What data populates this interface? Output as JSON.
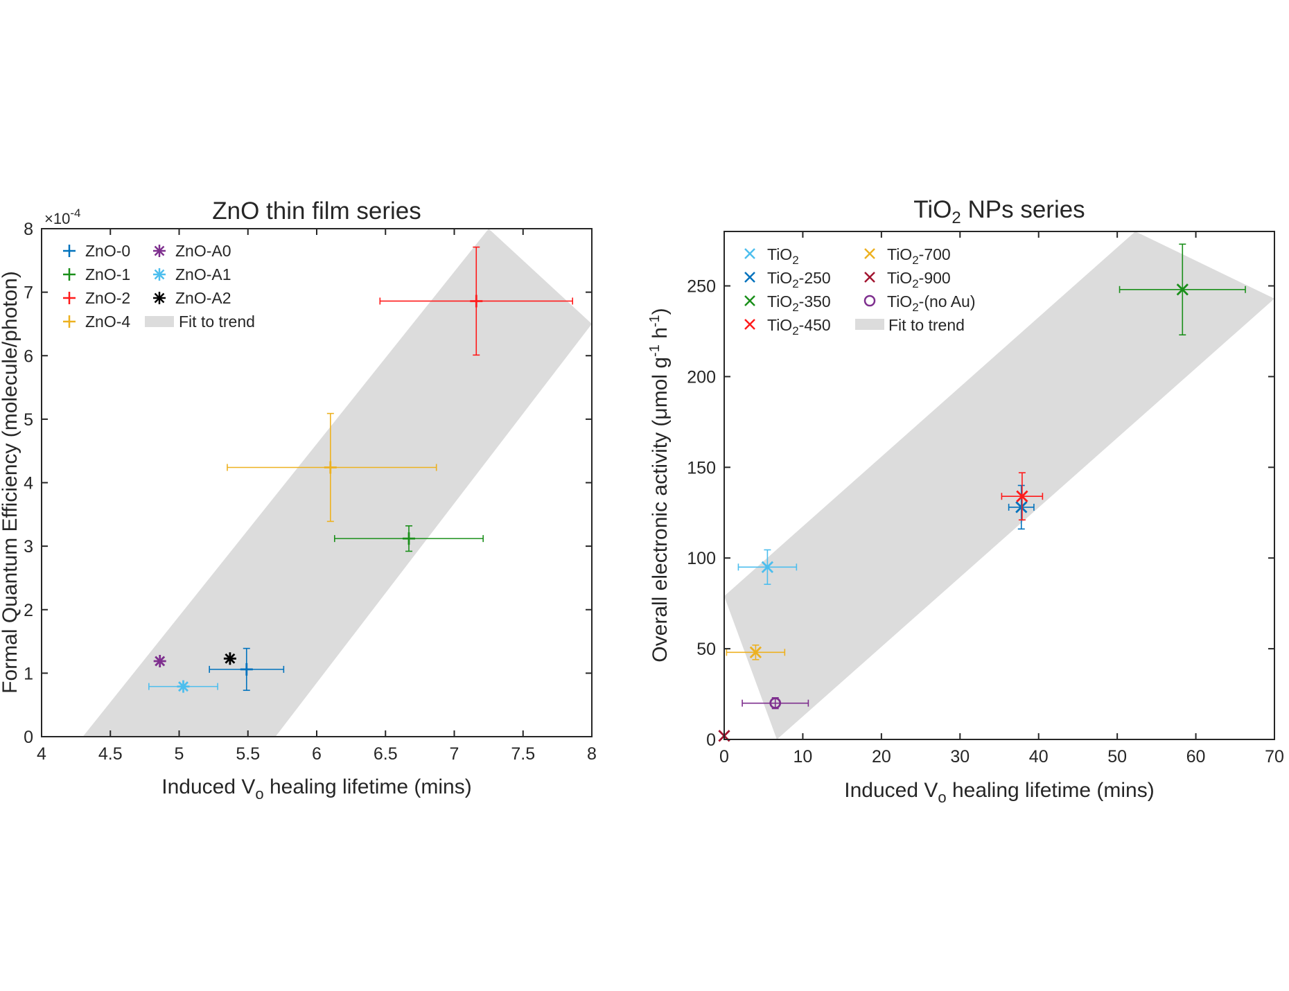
{
  "chart_data": [
    {
      "type": "scatter",
      "title": "ZnO thin film series",
      "xlabel": "Induced V_o healing lifetime (mins)",
      "ylabel": "Formal Quantum Efficiency (molecule/photon)",
      "y_exponent_label": "×10^-4",
      "xlim": [
        4,
        8
      ],
      "ylim": [
        0,
        8
      ],
      "xticks": [
        4,
        4.5,
        5,
        5.5,
        6,
        6.5,
        7,
        7.5,
        8
      ],
      "yticks": [
        0,
        1,
        2,
        3,
        4,
        5,
        6,
        7,
        8
      ],
      "xtick_labels": [
        "4",
        "4.5",
        "5",
        "5.5",
        "6",
        "6.5",
        "7",
        "7.5",
        "8"
      ],
      "ytick_labels": [
        "0",
        "1",
        "2",
        "3",
        "4",
        "5",
        "6",
        "7",
        "8"
      ],
      "grid": false,
      "legend_position": "top-left",
      "legend_columns": 2,
      "fit_band": {
        "label": "Fit to trend",
        "color": "#dcdcdc",
        "lower_line": {
          "x0": 5.7,
          "y0": 0,
          "x1": 8,
          "y1": 6.5
        },
        "upper_line": {
          "x0": 4.3,
          "y0": 0,
          "x1": 7.25,
          "y1": 8
        }
      },
      "series": [
        {
          "name": "ZnO-0",
          "color": "#0072bd",
          "marker": "plus",
          "x": 5.49,
          "y": 1.06,
          "xerr": [
            0.27,
            0.27
          ],
          "yerr": [
            0.33,
            0.33
          ]
        },
        {
          "name": "ZnO-1",
          "color": "#1a8f1a",
          "marker": "plus",
          "x": 6.67,
          "y": 3.12,
          "xerr": [
            0.54,
            0.54
          ],
          "yerr": [
            0.2,
            0.2
          ]
        },
        {
          "name": "ZnO-2",
          "color": "#ff1a1a",
          "marker": "plus",
          "x": 7.16,
          "y": 6.86,
          "xerr": [
            0.7,
            0.7
          ],
          "yerr": [
            0.85,
            0.85
          ]
        },
        {
          "name": "ZnO-4",
          "color": "#edb120",
          "marker": "plus",
          "x": 6.1,
          "y": 4.24,
          "xerr": [
            0.75,
            0.77
          ],
          "yerr": [
            0.85,
            0.85
          ]
        },
        {
          "name": "ZnO-A0",
          "color": "#7e2f8e",
          "marker": "asterisk",
          "x": 4.86,
          "y": 1.19
        },
        {
          "name": "ZnO-A1",
          "color": "#4dbeee",
          "marker": "asterisk",
          "x": 5.03,
          "y": 0.79,
          "xerr": [
            0.25,
            0.25
          ],
          "yerr": [
            0,
            0
          ]
        },
        {
          "name": "ZnO-A2",
          "color": "#000000",
          "marker": "asterisk",
          "x": 5.37,
          "y": 1.23
        }
      ]
    },
    {
      "type": "scatter",
      "title": "TiO2 NPs series",
      "xlabel": "Induced V_o healing lifetime (mins)",
      "ylabel": "Overall electronic activity (μmol g^-1 h^-1)",
      "xlim": [
        0,
        70
      ],
      "ylim": [
        0,
        280
      ],
      "xticks": [
        0,
        10,
        20,
        30,
        40,
        50,
        60,
        70
      ],
      "yticks": [
        0,
        50,
        100,
        150,
        200,
        250
      ],
      "xtick_labels": [
        "0",
        "10",
        "20",
        "30",
        "40",
        "50",
        "60",
        "70"
      ],
      "ytick_labels": [
        "0",
        "50",
        "100",
        "150",
        "200",
        "250"
      ],
      "grid": false,
      "legend_position": "top-left",
      "legend_columns": 2,
      "fit_band": {
        "label": "Fit to trend",
        "color": "#dcdcdc",
        "lower_line": {
          "x0": 6.7,
          "y0": 0,
          "x1": 70,
          "y1": 243
        },
        "upper_line": {
          "x0": 0,
          "y0": 79,
          "x1": 52.3,
          "y1": 280
        }
      },
      "series": [
        {
          "name": "TiO2",
          "color": "#4dbeee",
          "marker": "x",
          "x": 5.5,
          "y": 95,
          "xerr": [
            3.7,
            3.7
          ],
          "yerr": [
            9.5,
            9.5
          ]
        },
        {
          "name": "TiO2-250",
          "color": "#0072bd",
          "marker": "x",
          "x": 37.8,
          "y": 128,
          "xerr": [
            1.6,
            1.6
          ],
          "yerr": [
            12,
            12
          ]
        },
        {
          "name": "TiO2-350",
          "color": "#1a8f1a",
          "marker": "x",
          "x": 58.3,
          "y": 248,
          "xerr": [
            8,
            8
          ],
          "yerr": [
            25,
            25
          ]
        },
        {
          "name": "TiO2-450",
          "color": "#ff1a1a",
          "marker": "x",
          "x": 37.9,
          "y": 134,
          "xerr": [
            2.6,
            2.6
          ],
          "yerr": [
            13,
            13
          ]
        },
        {
          "name": "TiO2-700",
          "color": "#edb120",
          "marker": "x",
          "x": 4,
          "y": 48,
          "xerr": [
            3.7,
            3.7
          ],
          "yerr": [
            4,
            4
          ]
        },
        {
          "name": "TiO2-900",
          "color": "#a2142f",
          "marker": "x",
          "x": 0,
          "y": 2
        },
        {
          "name": "TiO2-(no Au)",
          "color": "#7e2f8e",
          "marker": "circle",
          "x": 6.5,
          "y": 20,
          "xerr": [
            4.2,
            4.2
          ],
          "yerr": [
            3,
            3
          ]
        }
      ]
    }
  ]
}
